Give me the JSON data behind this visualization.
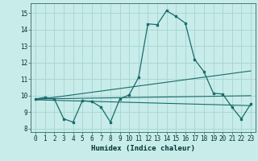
{
  "xlabel": "Humidex (Indice chaleur)",
  "bg_color": "#c8ecea",
  "grid_color": "#a8d8d4",
  "line_color": "#1a6b6b",
  "xlim": [
    -0.5,
    23.5
  ],
  "ylim": [
    7.8,
    15.6
  ],
  "xticks": [
    0,
    1,
    2,
    3,
    4,
    5,
    6,
    7,
    8,
    9,
    10,
    11,
    12,
    13,
    14,
    15,
    16,
    17,
    18,
    19,
    20,
    21,
    22,
    23
  ],
  "yticks": [
    8,
    9,
    10,
    11,
    12,
    13,
    14,
    15
  ],
  "line1_x": [
    0,
    1,
    2,
    3,
    4,
    5,
    6,
    7,
    8,
    9,
    10,
    11,
    12,
    13,
    14,
    15,
    16,
    17,
    18,
    19,
    20,
    21,
    22,
    23
  ],
  "line1_y": [
    9.8,
    9.9,
    9.8,
    8.6,
    8.4,
    9.7,
    9.65,
    9.3,
    8.4,
    9.8,
    10.05,
    11.1,
    14.35,
    14.3,
    15.15,
    14.8,
    14.4,
    12.2,
    11.45,
    10.15,
    10.1,
    9.3,
    8.6,
    9.5
  ],
  "line2_x": [
    0,
    23
  ],
  "line2_y": [
    9.8,
    10.0
  ],
  "line3_x": [
    0,
    23
  ],
  "line3_y": [
    9.75,
    9.4
  ],
  "line4_x": [
    0,
    23
  ],
  "line4_y": [
    9.75,
    11.5
  ]
}
